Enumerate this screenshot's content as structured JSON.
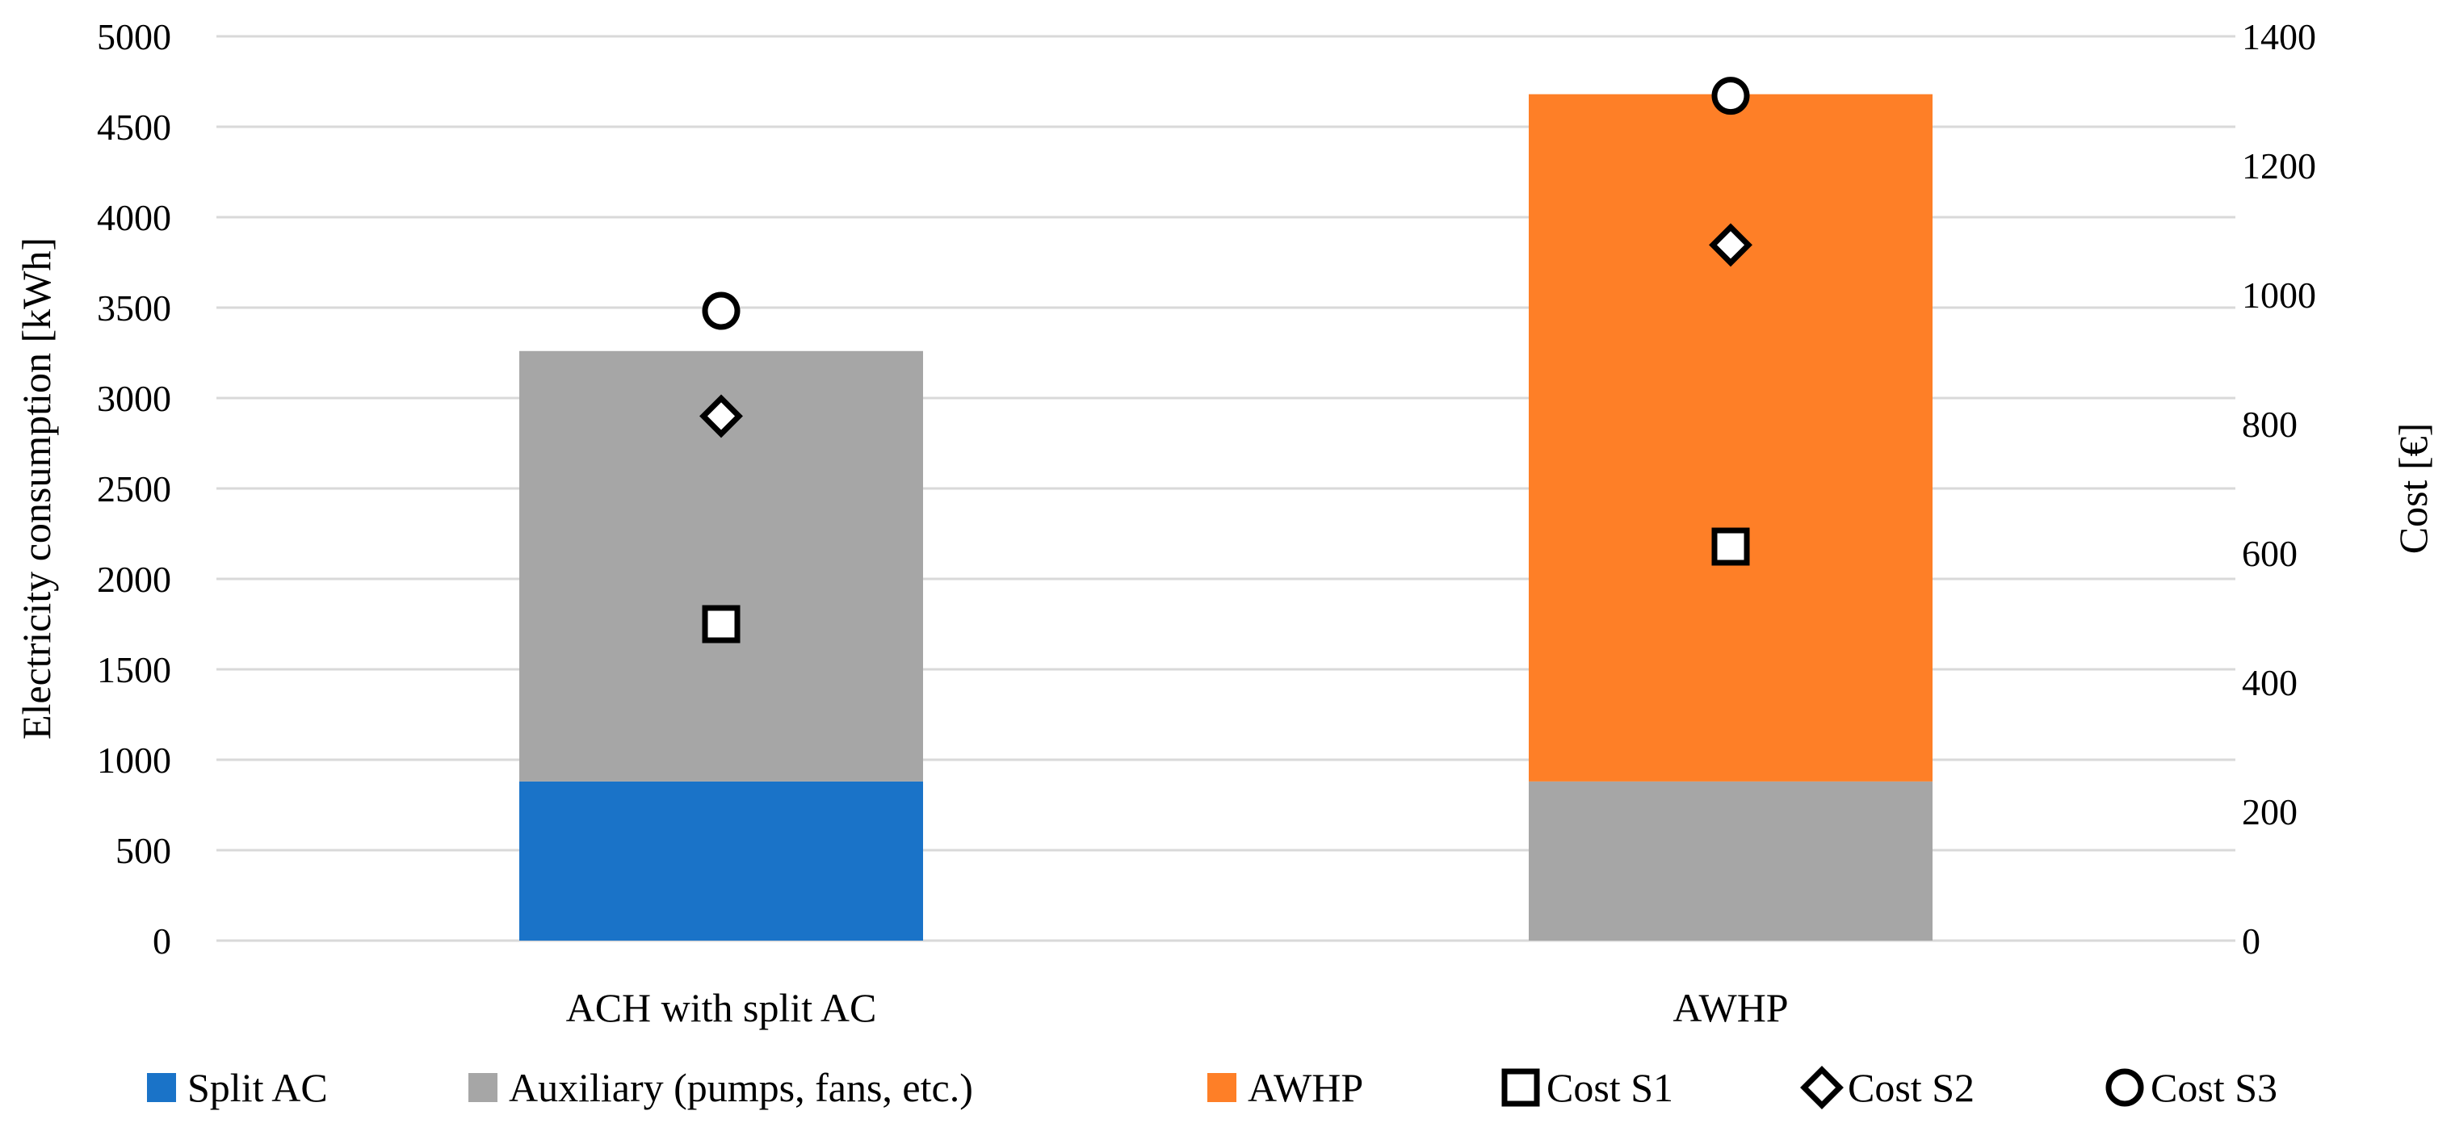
{
  "chart_data": {
    "type": "bar",
    "subtype": "stacked-bar-with-markers",
    "categories": [
      "ACH with split AC",
      "AWHP"
    ],
    "series": [
      {
        "name": "Split AC",
        "kind": "bar",
        "axis": "left",
        "color": "#1a73c8",
        "values": [
          880,
          0
        ]
      },
      {
        "name": "Auxiliary (pumps, fans, etc.)",
        "kind": "bar",
        "axis": "left",
        "color": "#a6a6a6",
        "values": [
          2380,
          880
        ]
      },
      {
        "name": "AWHP",
        "kind": "bar",
        "axis": "left",
        "color": "#fe7f27",
        "values": [
          0,
          3800
        ]
      },
      {
        "name": "Cost S1",
        "kind": "marker",
        "marker": "square",
        "axis": "right",
        "values": [
          490,
          610
        ]
      },
      {
        "name": "Cost S2",
        "kind": "marker",
        "marker": "diamond",
        "axis": "right",
        "values": [
          812,
          1077
        ]
      },
      {
        "name": "Cost S3",
        "kind": "marker",
        "marker": "circle",
        "axis": "right",
        "values": [
          975,
          1308
        ]
      }
    ],
    "stack_order": [
      "Split AC",
      "Auxiliary (pumps, fans, etc.)",
      "AWHP"
    ],
    "ylabel": "Electricity consumption [kWh]",
    "y2label": "Cost [€]",
    "ylim": [
      0,
      5000
    ],
    "y2lim": [
      0,
      1400
    ],
    "yticks": [
      "0",
      "500",
      "1000",
      "1500",
      "2000",
      "2500",
      "3000",
      "3500",
      "4000",
      "4500",
      "5000"
    ],
    "y2ticks": [
      "0",
      "200",
      "400",
      "600",
      "800",
      "1000",
      "1200",
      "1400"
    ],
    "grid": true,
    "legend_position": "bottom",
    "legend": [
      "Split AC",
      "Auxiliary (pumps, fans, etc.)",
      "AWHP",
      "Cost S1",
      "Cost S2",
      "Cost S3"
    ]
  }
}
